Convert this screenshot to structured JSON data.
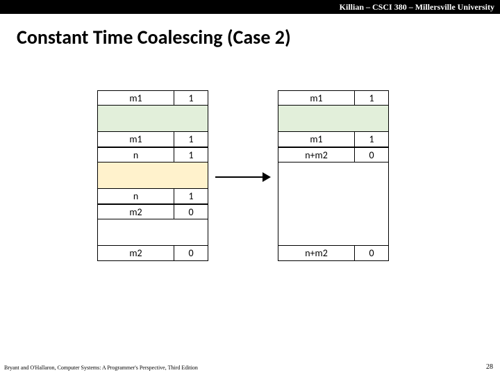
{
  "header": {
    "text": "Killian – CSCI 380 – Millersville University"
  },
  "title": "Constant Time Coalescing (Case 2)",
  "footer": {
    "left": "Bryant and O'Hallaron, Computer Systems: A Programmer's Perspective, Third Edition",
    "page": "28"
  },
  "colors": {
    "green_payload": "#e2efda",
    "yellow_payload": "#fff2cc",
    "white_payload": "#ffffff",
    "arrow": "#000000"
  },
  "left_blocks": [
    {
      "size": "m1",
      "alloc": "1",
      "payload_color": "green",
      "footer_size": "m1",
      "footer_alloc": "1"
    },
    {
      "size": "n",
      "alloc": "1",
      "payload_color": "yellow",
      "footer_size": "n",
      "footer_alloc": "1"
    },
    {
      "size": "m2",
      "alloc": "0",
      "payload_color": "white",
      "footer_size": "m2",
      "footer_alloc": "0"
    }
  ],
  "right_blocks": [
    {
      "size": "m1",
      "alloc": "1",
      "payload_color": "green",
      "footer_size": "m1",
      "footer_alloc": "1"
    },
    {
      "size": "n+m2",
      "alloc": "0",
      "payload_color": "white",
      "payload_tall": true,
      "footer_size": "n+m2",
      "footer_alloc": "0"
    }
  ]
}
